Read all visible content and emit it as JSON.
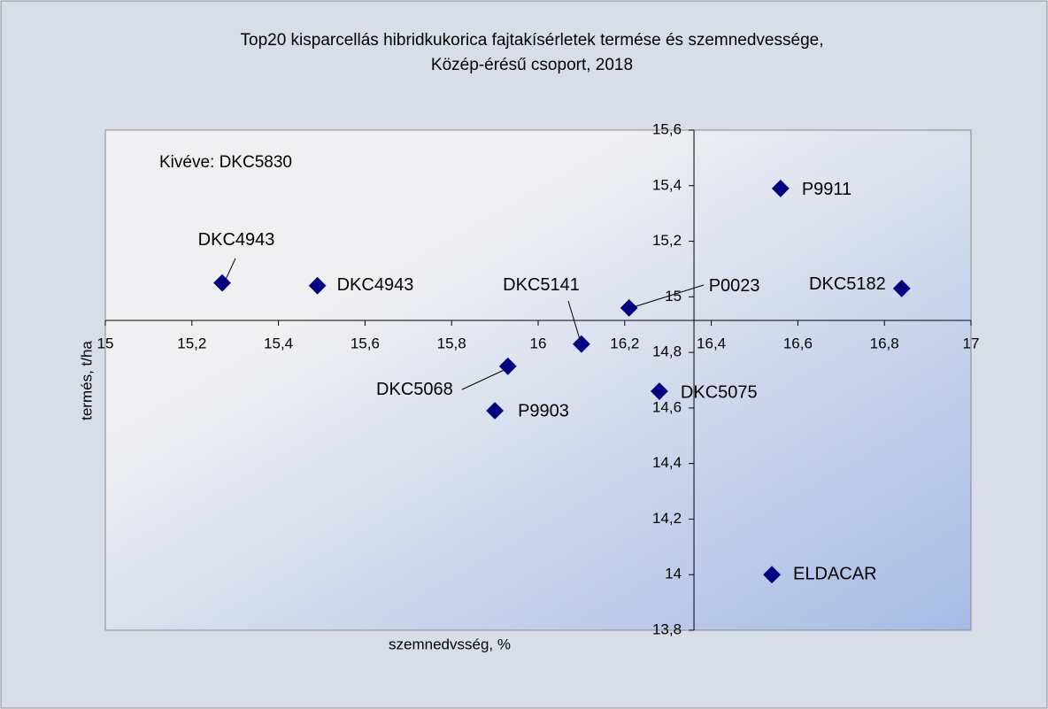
{
  "chart_data": {
    "type": "scatter",
    "title": [
      "Top20 kisparcellás hibridkukorica fajtakísérletek termése és szemnedvessége,",
      "Közép-érésű csoport, 2018"
    ],
    "annotation": "Kivéve: DKC5830",
    "x_label": "szemnedvsség, %",
    "y_label": "termés, t/ha",
    "color": "#000080",
    "point_labels": [
      "DKC4943",
      "DKC4943",
      "DKC5141",
      "P0023",
      "P9911",
      "DKC5182",
      "DKC5068",
      "P9903",
      "DKC5075",
      "ELDACAR"
    ],
    "x": [
      15.27,
      15.49,
      16.1,
      16.21,
      16.56,
      16.84,
      15.93,
      15.9,
      16.28,
      16.54
    ],
    "values": [
      15.05,
      15.04,
      14.83,
      14.96,
      15.39,
      15.03,
      14.75,
      14.59,
      14.66,
      14.0
    ],
    "xlim": [
      15,
      17
    ],
    "ylim": [
      13.8,
      15.6
    ],
    "xticks": [
      15,
      {
        "value": 15.2,
        "label": "15,2"
      },
      {
        "value": 15.4,
        "label": "15,4"
      },
      {
        "value": 15.6,
        "label": "15,6"
      },
      {
        "value": 15.8,
        "label": "15,8"
      },
      16,
      {
        "value": 16.2,
        "label": "16,2"
      },
      {
        "value": 16.4,
        "label": "16,4"
      },
      {
        "value": 16.6,
        "label": "16,6"
      },
      {
        "value": 16.8,
        "label": "16,8"
      },
      17
    ],
    "yticks": [
      {
        "value": 13.8,
        "label": "13,8"
      },
      14,
      {
        "value": 14.2,
        "label": "14,2"
      },
      {
        "value": 14.4,
        "label": "14,4"
      },
      {
        "value": 14.6,
        "label": "14,6"
      },
      {
        "value": 14.8,
        "label": "14,8"
      },
      15,
      {
        "value": 15.2,
        "label": "15,2"
      },
      {
        "value": 15.4,
        "label": "15,4"
      },
      {
        "value": 15.6,
        "label": "15,6"
      }
    ],
    "y_axis_crosses_x": 16.36,
    "x_axis_crosses_y": 14.915,
    "grid": false
  }
}
